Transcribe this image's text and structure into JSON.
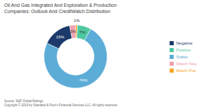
{
  "chart_data": {
    "type": "pie",
    "title": "Oil And Gas Integrated And Exploration & Production\nCompanies: Outlook And CreditWatch Distribution",
    "categories": [
      "Watch Pos",
      "Positive",
      "Stable",
      "Negative",
      "Watch Neg"
    ],
    "values": [
      1,
      7,
      74,
      15,
      3
    ],
    "value_labels": [
      "1%",
      "7%",
      "74%",
      "15%",
      "3%"
    ],
    "colors": [
      "#F5A623",
      "#4DC8A0",
      "#5BACD6",
      "#1B3A6B",
      "#F0A0B0"
    ],
    "data_labels": true,
    "legend": "right",
    "annotations": [
      "Source: S&P Global Ratings.",
      "Copyright © 2019 by Standard & Poor's Financial Services LLC. All rights reserved."
    ]
  }
}
